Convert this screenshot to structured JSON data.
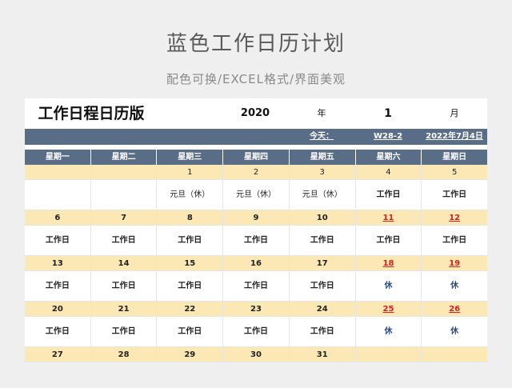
{
  "title": "蓝色工作日历计划",
  "subtitle": "配色可换/EXCEL格式/界面美观",
  "header": {
    "main": "工作日程日历版",
    "year": "2020",
    "year_label": "年",
    "month": "1",
    "month_label": "月"
  },
  "info": {
    "today_label": "今天：",
    "week": "W28-2",
    "date": "2022年7月4日"
  },
  "weekdays": [
    "星期一",
    "星期二",
    "星期三",
    "星期四",
    "星期五",
    "星期六",
    "星期日"
  ],
  "weeks": [
    {
      "dates": [
        "",
        "",
        "1",
        "2",
        "3",
        "4",
        "5"
      ],
      "status": [
        "",
        "",
        "元旦（休）",
        "元旦（休）",
        "元旦（休）",
        "工作日",
        "工作日"
      ]
    },
    {
      "dates": [
        "6",
        "7",
        "8",
        "9",
        "10",
        "11",
        "12"
      ],
      "status": [
        "工作日",
        "工作日",
        "工作日",
        "工作日",
        "工作日",
        "工作日",
        "工作日"
      ]
    },
    {
      "dates": [
        "13",
        "14",
        "15",
        "16",
        "17",
        "18",
        "19"
      ],
      "status": [
        "工作日",
        "工作日",
        "工作日",
        "工作日",
        "工作日",
        "休",
        "休"
      ]
    },
    {
      "dates": [
        "20",
        "21",
        "22",
        "23",
        "24",
        "25",
        "26"
      ],
      "status": [
        "工作日",
        "工作日",
        "工作日",
        "工作日",
        "工作日",
        "休",
        "休"
      ]
    },
    {
      "dates": [
        "27",
        "28",
        "29",
        "30",
        "31",
        "",
        ""
      ],
      "status": [
        "",
        "",
        "",
        "",
        "",
        "",
        ""
      ]
    }
  ],
  "colors": {
    "header_bar": "#5a6d87",
    "date_row": "#fce8b4",
    "weekend_date": "#d62020",
    "rest": "#2c4a84"
  }
}
